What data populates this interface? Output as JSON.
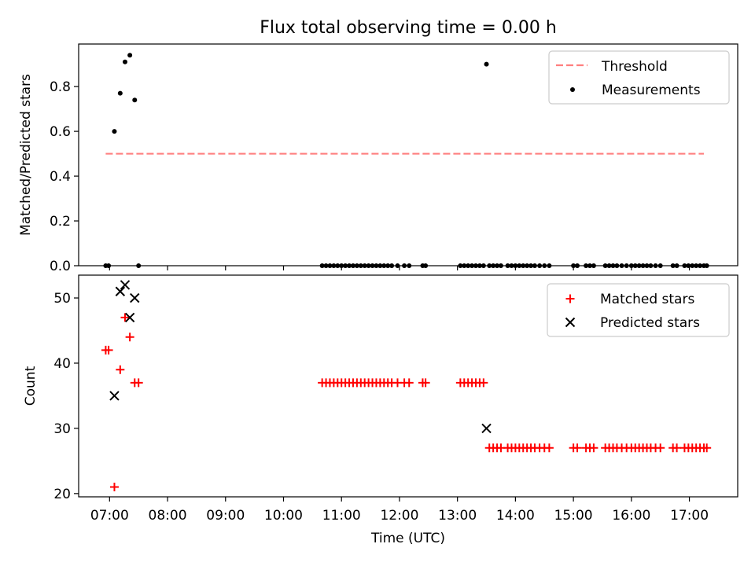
{
  "title": "Flux total observing time = 0.00 h",
  "colors": {
    "threshold": "#ff7f7f",
    "measurements": "#000000",
    "matched": "#ff0000",
    "predicted": "#000000"
  },
  "chart_data": [
    {
      "type": "scatter",
      "title": "Flux total observing time = 0.00 h",
      "ylabel": "Matched/Predicted stars",
      "xlim": [
        "06:28",
        "17:50"
      ],
      "ylim": [
        0,
        0.99
      ],
      "yticks": [
        "0.0",
        "0.2",
        "0.4",
        "0.6",
        "0.8"
      ],
      "legend_position": "top-right",
      "legend": [
        "Threshold",
        "Measurements"
      ],
      "series": [
        {
          "name": "Threshold",
          "kind": "dashed-line",
          "x": [
            "06:56",
            "17:15"
          ],
          "y": [
            0.5,
            0.5
          ]
        },
        {
          "name": "Measurements",
          "kind": "dot",
          "points": [
            [
              "06:56",
              0
            ],
            [
              "06:59",
              0
            ],
            [
              "07:05",
              0.6
            ],
            [
              "07:11",
              0.77
            ],
            [
              "07:16",
              0.91
            ],
            [
              "07:21",
              0.94
            ],
            [
              "07:26",
              0.74
            ],
            [
              "07:30",
              0
            ],
            [
              "10:40",
              0
            ],
            [
              "10:44",
              0
            ],
            [
              "10:48",
              0
            ],
            [
              "10:52",
              0
            ],
            [
              "10:56",
              0
            ],
            [
              "11:00",
              0
            ],
            [
              "11:04",
              0
            ],
            [
              "11:08",
              0
            ],
            [
              "11:12",
              0
            ],
            [
              "11:16",
              0
            ],
            [
              "11:20",
              0
            ],
            [
              "11:24",
              0
            ],
            [
              "11:28",
              0
            ],
            [
              "11:32",
              0
            ],
            [
              "11:36",
              0
            ],
            [
              "11:40",
              0
            ],
            [
              "11:44",
              0
            ],
            [
              "11:48",
              0
            ],
            [
              "11:52",
              0
            ],
            [
              "11:58",
              0
            ],
            [
              "12:05",
              0
            ],
            [
              "12:10",
              0
            ],
            [
              "12:24",
              0
            ],
            [
              "12:27",
              0
            ],
            [
              "13:03",
              0
            ],
            [
              "13:07",
              0
            ],
            [
              "13:11",
              0
            ],
            [
              "13:15",
              0
            ],
            [
              "13:19",
              0
            ],
            [
              "13:23",
              0
            ],
            [
              "13:27",
              0
            ],
            [
              "13:30",
              0.9
            ],
            [
              "13:33",
              0
            ],
            [
              "13:37",
              0
            ],
            [
              "13:41",
              0
            ],
            [
              "13:45",
              0
            ],
            [
              "13:52",
              0
            ],
            [
              "13:56",
              0
            ],
            [
              "14:00",
              0
            ],
            [
              "14:04",
              0
            ],
            [
              "14:08",
              0
            ],
            [
              "14:12",
              0
            ],
            [
              "14:16",
              0
            ],
            [
              "14:20",
              0
            ],
            [
              "14:25",
              0
            ],
            [
              "14:30",
              0
            ],
            [
              "14:35",
              0
            ],
            [
              "15:00",
              0
            ],
            [
              "15:04",
              0
            ],
            [
              "15:13",
              0
            ],
            [
              "15:17",
              0
            ],
            [
              "15:21",
              0
            ],
            [
              "15:33",
              0
            ],
            [
              "15:37",
              0
            ],
            [
              "15:41",
              0
            ],
            [
              "15:45",
              0
            ],
            [
              "15:50",
              0
            ],
            [
              "15:55",
              0
            ],
            [
              "16:00",
              0
            ],
            [
              "16:04",
              0
            ],
            [
              "16:08",
              0
            ],
            [
              "16:12",
              0
            ],
            [
              "16:16",
              0
            ],
            [
              "16:20",
              0
            ],
            [
              "16:25",
              0
            ],
            [
              "16:30",
              0
            ],
            [
              "16:43",
              0
            ],
            [
              "16:47",
              0
            ],
            [
              "16:55",
              0
            ],
            [
              "16:59",
              0
            ],
            [
              "17:03",
              0
            ],
            [
              "17:07",
              0
            ],
            [
              "17:11",
              0
            ],
            [
              "17:15",
              0
            ],
            [
              "17:18",
              0
            ]
          ]
        }
      ]
    },
    {
      "type": "scatter",
      "xlabel": "Time (UTC)",
      "ylabel": "Count",
      "xlim": [
        "06:28",
        "17:50"
      ],
      "ylim": [
        19.5,
        53.5
      ],
      "xticks": [
        "07:00",
        "08:00",
        "09:00",
        "10:00",
        "11:00",
        "12:00",
        "13:00",
        "14:00",
        "15:00",
        "16:00",
        "17:00"
      ],
      "yticks": [
        "20",
        "30",
        "40",
        "50"
      ],
      "legend_position": "top-right",
      "legend": [
        "Matched stars",
        "Predicted stars"
      ],
      "series": [
        {
          "name": "Matched stars",
          "kind": "plus",
          "points": [
            [
              "06:56",
              42
            ],
            [
              "06:59",
              42
            ],
            [
              "07:05",
              21
            ],
            [
              "07:11",
              39
            ],
            [
              "07:16",
              47
            ],
            [
              "07:21",
              44
            ],
            [
              "07:26",
              37
            ],
            [
              "07:30",
              37
            ],
            [
              "10:40",
              37
            ],
            [
              "10:44",
              37
            ],
            [
              "10:48",
              37
            ],
            [
              "10:52",
              37
            ],
            [
              "10:56",
              37
            ],
            [
              "11:00",
              37
            ],
            [
              "11:04",
              37
            ],
            [
              "11:08",
              37
            ],
            [
              "11:12",
              37
            ],
            [
              "11:16",
              37
            ],
            [
              "11:20",
              37
            ],
            [
              "11:24",
              37
            ],
            [
              "11:28",
              37
            ],
            [
              "11:32",
              37
            ],
            [
              "11:36",
              37
            ],
            [
              "11:40",
              37
            ],
            [
              "11:44",
              37
            ],
            [
              "11:48",
              37
            ],
            [
              "11:52",
              37
            ],
            [
              "11:58",
              37
            ],
            [
              "12:05",
              37
            ],
            [
              "12:10",
              37
            ],
            [
              "12:24",
              37
            ],
            [
              "12:27",
              37
            ],
            [
              "13:03",
              37
            ],
            [
              "13:07",
              37
            ],
            [
              "13:11",
              37
            ],
            [
              "13:15",
              37
            ],
            [
              "13:19",
              37
            ],
            [
              "13:23",
              37
            ],
            [
              "13:27",
              37
            ],
            [
              "13:33",
              27
            ],
            [
              "13:37",
              27
            ],
            [
              "13:41",
              27
            ],
            [
              "13:45",
              27
            ],
            [
              "13:52",
              27
            ],
            [
              "13:56",
              27
            ],
            [
              "14:00",
              27
            ],
            [
              "14:04",
              27
            ],
            [
              "14:08",
              27
            ],
            [
              "14:12",
              27
            ],
            [
              "14:16",
              27
            ],
            [
              "14:20",
              27
            ],
            [
              "14:25",
              27
            ],
            [
              "14:30",
              27
            ],
            [
              "14:35",
              27
            ],
            [
              "15:00",
              27
            ],
            [
              "15:04",
              27
            ],
            [
              "15:13",
              27
            ],
            [
              "15:17",
              27
            ],
            [
              "15:21",
              27
            ],
            [
              "15:33",
              27
            ],
            [
              "15:37",
              27
            ],
            [
              "15:41",
              27
            ],
            [
              "15:45",
              27
            ],
            [
              "15:50",
              27
            ],
            [
              "15:55",
              27
            ],
            [
              "16:00",
              27
            ],
            [
              "16:04",
              27
            ],
            [
              "16:08",
              27
            ],
            [
              "16:12",
              27
            ],
            [
              "16:16",
              27
            ],
            [
              "16:20",
              27
            ],
            [
              "16:25",
              27
            ],
            [
              "16:30",
              27
            ],
            [
              "16:43",
              27
            ],
            [
              "16:47",
              27
            ],
            [
              "16:55",
              27
            ],
            [
              "16:59",
              27
            ],
            [
              "17:03",
              27
            ],
            [
              "17:07",
              27
            ],
            [
              "17:11",
              27
            ],
            [
              "17:15",
              27
            ],
            [
              "17:18",
              27
            ]
          ]
        },
        {
          "name": "Predicted stars",
          "kind": "x",
          "points": [
            [
              "07:05",
              35
            ],
            [
              "07:11",
              51
            ],
            [
              "07:16",
              52
            ],
            [
              "07:21",
              47
            ],
            [
              "07:26",
              50
            ],
            [
              "13:30",
              30
            ]
          ]
        }
      ]
    }
  ]
}
